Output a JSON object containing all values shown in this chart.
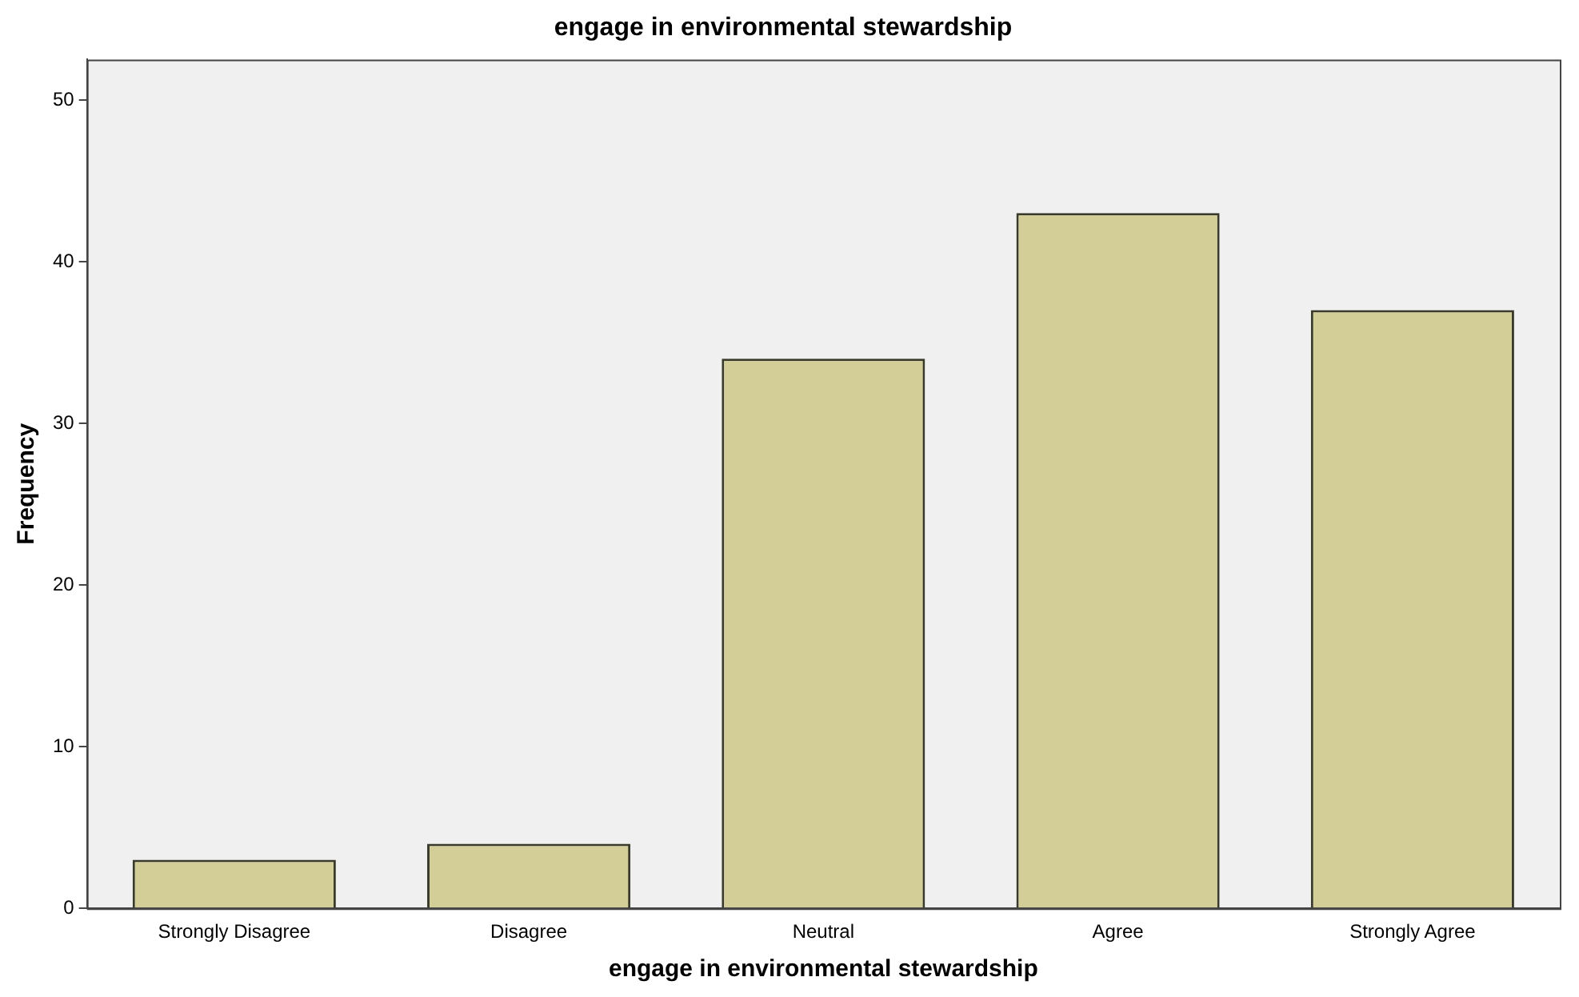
{
  "chart_data": {
    "type": "bar",
    "title": "engage in environmental stewardship",
    "xlabel": "engage in environmental stewardship",
    "ylabel": "Frequency",
    "categories": [
      "Strongly Disagree",
      "Disagree",
      "Neutral",
      "Agree",
      "Strongly Agree"
    ],
    "values": [
      3,
      4,
      34,
      43,
      37
    ],
    "color": "#d3ce97",
    "ylim": [
      0,
      52.5
    ],
    "yticks": [
      0,
      10,
      20,
      30,
      40,
      50
    ],
    "grid": false,
    "legend": false
  }
}
